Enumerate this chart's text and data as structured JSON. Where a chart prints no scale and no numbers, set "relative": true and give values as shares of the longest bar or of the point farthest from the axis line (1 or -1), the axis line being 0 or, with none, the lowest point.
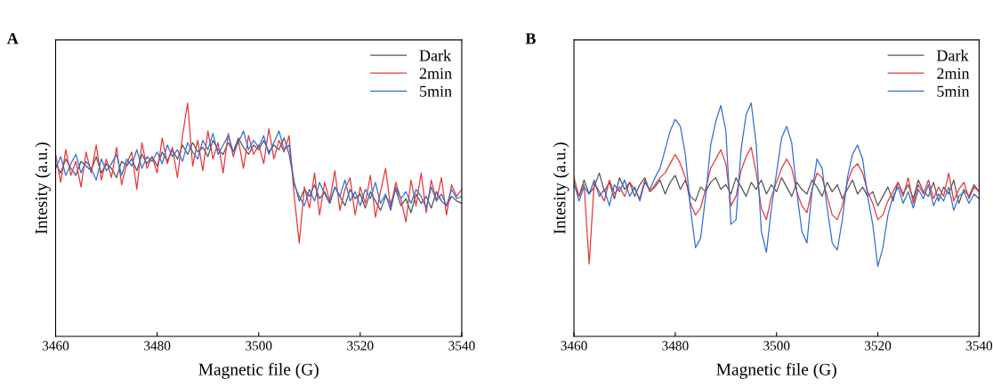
{
  "chart_data": [
    {
      "type": "line",
      "title": "A",
      "xlabel": "Magnetic file (G)",
      "ylabel": "Intesity (a.u.)",
      "relative": true,
      "xlim": [
        3460,
        3540
      ],
      "xticks": [
        3460,
        3480,
        3500,
        3520,
        3540
      ],
      "tick_labels": "x",
      "legend": "top right",
      "grid": false,
      "x": [
        3460,
        3461,
        3462,
        3463,
        3464,
        3465,
        3466,
        3467,
        3468,
        3469,
        3470,
        3471,
        3472,
        3473,
        3474,
        3475,
        3476,
        3477,
        3478,
        3479,
        3480,
        3481,
        3482,
        3483,
        3484,
        3485,
        3486,
        3487,
        3488,
        3489,
        3490,
        3491,
        3492,
        3493,
        3494,
        3495,
        3496,
        3497,
        3498,
        3499,
        3500,
        3501,
        3502,
        3503,
        3504,
        3505,
        3506,
        3507,
        3508,
        3509,
        3510,
        3511,
        3512,
        3513,
        3514,
        3515,
        3516,
        3517,
        3518,
        3519,
        3520,
        3521,
        3522,
        3523,
        3524,
        3525,
        3526,
        3527,
        3528,
        3529,
        3530,
        3531,
        3532,
        3533,
        3534,
        3535,
        3536,
        3537,
        3538,
        3539,
        3540
      ],
      "series": [
        {
          "name": "Dark",
          "color": "#555555",
          "values": [
            0.74,
            0.7,
            0.76,
            0.72,
            0.69,
            0.75,
            0.73,
            0.71,
            0.77,
            0.7,
            0.74,
            0.72,
            0.68,
            0.75,
            0.73,
            0.76,
            0.71,
            0.78,
            0.74,
            0.77,
            0.73,
            0.79,
            0.75,
            0.8,
            0.76,
            0.82,
            0.78,
            0.83,
            0.79,
            0.81,
            0.77,
            0.84,
            0.8,
            0.78,
            0.83,
            0.79,
            0.85,
            0.81,
            0.78,
            0.82,
            0.8,
            0.84,
            0.79,
            0.82,
            0.8,
            0.85,
            0.78,
            0.66,
            0.58,
            0.63,
            0.6,
            0.65,
            0.59,
            0.62,
            0.57,
            0.64,
            0.6,
            0.56,
            0.63,
            0.59,
            0.61,
            0.55,
            0.62,
            0.58,
            0.54,
            0.6,
            0.57,
            0.63,
            0.56,
            0.59,
            0.53,
            0.61,
            0.57,
            0.6,
            0.55,
            0.62,
            0.58,
            0.56,
            0.6,
            0.58,
            0.57
          ]
        },
        {
          "name": "2min",
          "color": "#e8373a",
          "values": [
            0.78,
            0.66,
            0.8,
            0.69,
            0.75,
            0.64,
            0.79,
            0.7,
            0.82,
            0.67,
            0.76,
            0.68,
            0.81,
            0.65,
            0.74,
            0.79,
            0.63,
            0.83,
            0.72,
            0.77,
            0.7,
            0.85,
            0.74,
            0.81,
            0.68,
            0.86,
            1.0,
            0.73,
            0.84,
            0.71,
            0.88,
            0.76,
            0.83,
            0.7,
            0.87,
            0.77,
            0.84,
            0.72,
            0.86,
            0.78,
            0.82,
            0.74,
            0.89,
            0.76,
            0.84,
            0.79,
            0.86,
            0.6,
            0.4,
            0.64,
            0.55,
            0.7,
            0.52,
            0.66,
            0.58,
            0.71,
            0.54,
            0.63,
            0.68,
            0.52,
            0.64,
            0.57,
            0.69,
            0.51,
            0.62,
            0.72,
            0.55,
            0.66,
            0.59,
            0.49,
            0.67,
            0.56,
            0.7,
            0.53,
            0.67,
            0.58,
            0.68,
            0.52,
            0.65,
            0.6,
            0.63
          ]
        },
        {
          "name": "5min",
          "color": "#2f6fd6",
          "values": [
            0.72,
            0.77,
            0.69,
            0.74,
            0.78,
            0.7,
            0.75,
            0.72,
            0.67,
            0.76,
            0.71,
            0.74,
            0.78,
            0.69,
            0.76,
            0.73,
            0.8,
            0.72,
            0.77,
            0.75,
            0.79,
            0.74,
            0.82,
            0.77,
            0.8,
            0.75,
            0.83,
            0.79,
            0.76,
            0.84,
            0.8,
            0.87,
            0.78,
            0.82,
            0.86,
            0.79,
            0.83,
            0.88,
            0.8,
            0.84,
            0.81,
            0.86,
            0.78,
            0.83,
            0.88,
            0.8,
            0.82,
            0.65,
            0.6,
            0.56,
            0.63,
            0.58,
            0.66,
            0.61,
            0.57,
            0.64,
            0.6,
            0.67,
            0.58,
            0.62,
            0.56,
            0.63,
            0.59,
            0.66,
            0.57,
            0.61,
            0.54,
            0.64,
            0.59,
            0.62,
            0.57,
            0.63,
            0.6,
            0.55,
            0.64,
            0.58,
            0.61,
            0.56,
            0.63,
            0.59,
            0.6
          ]
        }
      ]
    },
    {
      "type": "line",
      "title": "B",
      "xlabel": "Magnetic file (G)",
      "ylabel": "Intesity (a.u.)",
      "relative": true,
      "xlim": [
        3460,
        3540
      ],
      "xticks": [
        3460,
        3480,
        3500,
        3520,
        3540
      ],
      "tick_labels": "x",
      "legend": "top right",
      "grid": false,
      "x": [
        3460,
        3461,
        3462,
        3463,
        3464,
        3465,
        3466,
        3467,
        3468,
        3469,
        3470,
        3471,
        3472,
        3473,
        3474,
        3475,
        3476,
        3477,
        3478,
        3479,
        3480,
        3481,
        3482,
        3483,
        3484,
        3485,
        3486,
        3487,
        3488,
        3489,
        3490,
        3491,
        3492,
        3493,
        3494,
        3495,
        3496,
        3497,
        3498,
        3499,
        3500,
        3501,
        3502,
        3503,
        3504,
        3505,
        3506,
        3507,
        3508,
        3509,
        3510,
        3511,
        3512,
        3513,
        3514,
        3515,
        3516,
        3517,
        3518,
        3519,
        3520,
        3521,
        3522,
        3523,
        3524,
        3525,
        3526,
        3527,
        3528,
        3529,
        3530,
        3531,
        3532,
        3533,
        3534,
        3535,
        3536,
        3537,
        3538,
        3539,
        3540
      ],
      "series": [
        {
          "name": "Dark",
          "color": "#555555",
          "values": [
            0.65,
            0.6,
            0.67,
            0.61,
            0.64,
            0.7,
            0.62,
            0.66,
            0.59,
            0.68,
            0.63,
            0.66,
            0.6,
            0.65,
            0.68,
            0.62,
            0.64,
            0.67,
            0.61,
            0.66,
            0.69,
            0.63,
            0.67,
            0.6,
            0.58,
            0.64,
            0.62,
            0.66,
            0.68,
            0.63,
            0.65,
            0.61,
            0.68,
            0.64,
            0.6,
            0.66,
            0.63,
            0.67,
            0.61,
            0.65,
            0.62,
            0.68,
            0.64,
            0.6,
            0.66,
            0.63,
            0.61,
            0.67,
            0.64,
            0.6,
            0.66,
            0.62,
            0.65,
            0.59,
            0.63,
            0.67,
            0.61,
            0.64,
            0.6,
            0.62,
            0.56,
            0.6,
            0.64,
            0.58,
            0.66,
            0.61,
            0.65,
            0.59,
            0.67,
            0.62,
            0.6,
            0.66,
            0.58,
            0.64,
            0.61,
            0.67,
            0.57,
            0.63,
            0.6,
            0.65,
            0.62
          ]
        },
        {
          "name": "2min",
          "color": "#e8373a",
          "values": [
            0.68,
            0.6,
            0.65,
            0.31,
            0.66,
            0.62,
            0.58,
            0.67,
            0.61,
            0.64,
            0.6,
            0.66,
            0.63,
            0.59,
            0.67,
            0.62,
            0.65,
            0.68,
            0.7,
            0.74,
            0.78,
            0.74,
            0.68,
            0.57,
            0.52,
            0.55,
            0.63,
            0.72,
            0.76,
            0.8,
            0.74,
            0.56,
            0.6,
            0.71,
            0.77,
            0.81,
            0.7,
            0.55,
            0.5,
            0.6,
            0.66,
            0.72,
            0.76,
            0.72,
            0.62,
            0.56,
            0.53,
            0.63,
            0.7,
            0.68,
            0.6,
            0.52,
            0.5,
            0.56,
            0.66,
            0.72,
            0.74,
            0.7,
            0.62,
            0.57,
            0.5,
            0.52,
            0.58,
            0.62,
            0.66,
            0.6,
            0.68,
            0.57,
            0.65,
            0.61,
            0.67,
            0.59,
            0.64,
            0.6,
            0.7,
            0.58,
            0.63,
            0.66,
            0.59,
            0.64,
            0.62
          ]
        },
        {
          "name": "5min",
          "color": "#2f6fd6",
          "values": [
            0.66,
            0.58,
            0.64,
            0.61,
            0.67,
            0.6,
            0.63,
            0.56,
            0.65,
            0.62,
            0.67,
            0.6,
            0.64,
            0.58,
            0.66,
            0.63,
            0.68,
            0.72,
            0.8,
            0.88,
            0.93,
            0.9,
            0.78,
            0.55,
            0.38,
            0.42,
            0.6,
            0.82,
            0.92,
            0.99,
            0.88,
            0.48,
            0.5,
            0.8,
            0.95,
            1.0,
            0.82,
            0.45,
            0.36,
            0.55,
            0.7,
            0.85,
            0.9,
            0.83,
            0.62,
            0.45,
            0.4,
            0.62,
            0.76,
            0.72,
            0.55,
            0.4,
            0.37,
            0.5,
            0.68,
            0.78,
            0.82,
            0.76,
            0.6,
            0.48,
            0.3,
            0.38,
            0.52,
            0.6,
            0.64,
            0.57,
            0.62,
            0.55,
            0.63,
            0.59,
            0.65,
            0.56,
            0.61,
            0.58,
            0.64,
            0.54,
            0.6,
            0.62,
            0.57,
            0.61,
            0.59
          ]
        }
      ]
    }
  ]
}
